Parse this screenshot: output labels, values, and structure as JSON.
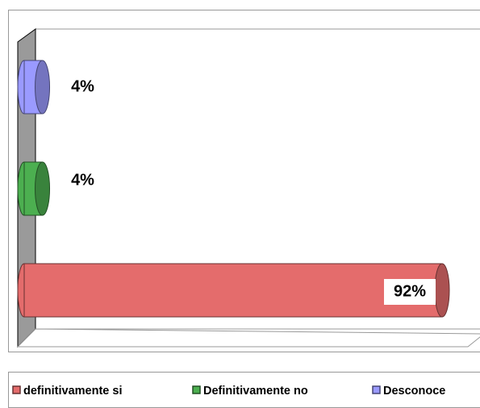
{
  "chart_data": {
    "type": "bar3d",
    "series": [
      {
        "name": "definitivamente si",
        "color": "#e46c6c",
        "values": [
          92
        ],
        "value_labels": [
          "92%"
        ]
      },
      {
        "name": "Definitivamente no",
        "color": "#4caf50",
        "values": [
          4
        ],
        "value_labels": [
          "4%"
        ]
      },
      {
        "name": "Desconoce",
        "color": "#9a9aff",
        "values": [
          4
        ],
        "value_labels": [
          "4%"
        ]
      }
    ]
  }
}
